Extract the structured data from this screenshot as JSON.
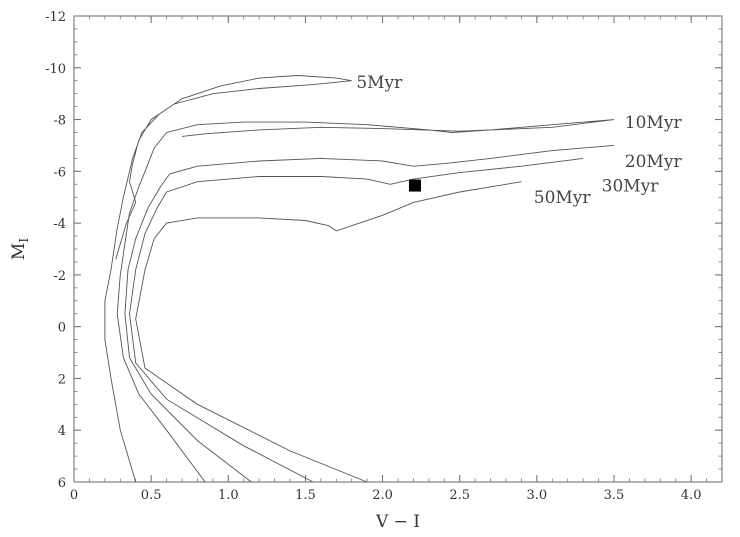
{
  "chart_data": {
    "type": "line",
    "title": "",
    "xlabel": "V − I",
    "ylabel_main": "M",
    "ylabel_sub": "I",
    "xlim": [
      0,
      4.2
    ],
    "ylim": [
      -12,
      6
    ],
    "y_inverted": true,
    "grid": false,
    "xticks": [
      0,
      0.5,
      1.0,
      1.5,
      2.0,
      2.5,
      3.0,
      3.5,
      4.0
    ],
    "xtick_labels": [
      "0",
      "0.5",
      "1.0",
      "1.5",
      "2.0",
      "2.5",
      "3.0",
      "3.5",
      "4.0"
    ],
    "yticks": [
      -12,
      -10,
      -8,
      -6,
      -4,
      -2,
      0,
      2,
      4,
      6
    ],
    "ytick_labels": [
      "-12",
      "-10",
      "-8",
      "-6",
      "-4",
      "-2",
      "0",
      "2",
      "4",
      "6"
    ],
    "series": [
      {
        "name": "5Myr",
        "label_at": [
          1.83,
          -9.45
        ],
        "points": [
          [
            0.4,
            6.0
          ],
          [
            0.3,
            4.0
          ],
          [
            0.24,
            2.0
          ],
          [
            0.2,
            0.5
          ],
          [
            0.2,
            -1.0
          ],
          [
            0.24,
            -2.2
          ],
          [
            0.28,
            -3.8
          ],
          [
            0.32,
            -5.0
          ],
          [
            0.38,
            -6.5
          ],
          [
            0.44,
            -7.5
          ],
          [
            0.55,
            -8.2
          ],
          [
            0.7,
            -8.8
          ],
          [
            0.95,
            -9.3
          ],
          [
            1.2,
            -9.6
          ],
          [
            1.45,
            -9.7
          ],
          [
            1.7,
            -9.6
          ],
          [
            1.8,
            -9.5
          ],
          [
            1.55,
            -9.35
          ],
          [
            1.2,
            -9.2
          ],
          [
            0.9,
            -9.0
          ],
          [
            0.65,
            -8.6
          ],
          [
            0.5,
            -8.0
          ],
          [
            0.42,
            -7.2
          ],
          [
            0.38,
            -6.3
          ],
          [
            0.36,
            -5.6
          ],
          [
            0.4,
            -4.8
          ],
          [
            0.34,
            -4.0
          ],
          [
            0.3,
            -3.2
          ],
          [
            0.27,
            -2.6
          ]
        ]
      },
      {
        "name": "10Myr",
        "label_at": [
          3.57,
          -7.9
        ],
        "points": [
          [
            0.85,
            6.0
          ],
          [
            0.6,
            4.0
          ],
          [
            0.42,
            2.6
          ],
          [
            0.32,
            1.2
          ],
          [
            0.28,
            -0.5
          ],
          [
            0.3,
            -2.0
          ],
          [
            0.33,
            -3.2
          ],
          [
            0.36,
            -4.4
          ],
          [
            0.42,
            -5.4
          ],
          [
            0.48,
            -6.3
          ],
          [
            0.52,
            -6.9
          ],
          [
            0.6,
            -7.5
          ],
          [
            0.8,
            -7.8
          ],
          [
            1.1,
            -7.9
          ],
          [
            1.5,
            -7.9
          ],
          [
            1.9,
            -7.8
          ],
          [
            2.3,
            -7.6
          ],
          [
            2.45,
            -7.5
          ],
          [
            2.7,
            -7.6
          ],
          [
            3.1,
            -7.8
          ],
          [
            3.5,
            -8.0
          ],
          [
            3.1,
            -7.7
          ],
          [
            2.5,
            -7.55
          ],
          [
            2.0,
            -7.65
          ],
          [
            1.6,
            -7.7
          ],
          [
            1.2,
            -7.6
          ],
          [
            0.85,
            -7.45
          ],
          [
            0.7,
            -7.35
          ]
        ]
      },
      {
        "name": "20Myr",
        "label_at": [
          3.57,
          -6.4
        ],
        "points": [
          [
            1.15,
            6.0
          ],
          [
            0.8,
            4.4
          ],
          [
            0.5,
            2.6
          ],
          [
            0.36,
            1.2
          ],
          [
            0.33,
            -0.5
          ],
          [
            0.35,
            -2.2
          ],
          [
            0.4,
            -3.4
          ],
          [
            0.48,
            -4.6
          ],
          [
            0.56,
            -5.4
          ],
          [
            0.62,
            -5.9
          ],
          [
            0.8,
            -6.2
          ],
          [
            1.2,
            -6.4
          ],
          [
            1.6,
            -6.5
          ],
          [
            2.0,
            -6.4
          ],
          [
            2.2,
            -6.2
          ],
          [
            2.4,
            -6.3
          ],
          [
            2.7,
            -6.5
          ],
          [
            3.1,
            -6.8
          ],
          [
            3.5,
            -7.0
          ]
        ]
      },
      {
        "name": "30Myr",
        "label_at": [
          3.42,
          -5.45
        ],
        "points": [
          [
            1.55,
            6.0
          ],
          [
            1.1,
            4.6
          ],
          [
            0.6,
            2.8
          ],
          [
            0.4,
            1.4
          ],
          [
            0.36,
            -0.5
          ],
          [
            0.4,
            -2.2
          ],
          [
            0.46,
            -3.6
          ],
          [
            0.54,
            -4.6
          ],
          [
            0.6,
            -5.2
          ],
          [
            0.8,
            -5.6
          ],
          [
            1.2,
            -5.8
          ],
          [
            1.6,
            -5.8
          ],
          [
            1.9,
            -5.7
          ],
          [
            2.05,
            -5.5
          ],
          [
            2.2,
            -5.7
          ],
          [
            2.5,
            -5.95
          ],
          [
            2.9,
            -6.2
          ],
          [
            3.3,
            -6.5
          ]
        ]
      },
      {
        "name": "50Myr",
        "label_at": [
          2.98,
          -5.0
        ],
        "points": [
          [
            1.9,
            6.0
          ],
          [
            1.4,
            4.8
          ],
          [
            0.8,
            3.0
          ],
          [
            0.46,
            1.6
          ],
          [
            0.4,
            -0.3
          ],
          [
            0.46,
            -2.2
          ],
          [
            0.52,
            -3.4
          ],
          [
            0.6,
            -4.0
          ],
          [
            0.8,
            -4.2
          ],
          [
            1.2,
            -4.2
          ],
          [
            1.5,
            -4.1
          ],
          [
            1.65,
            -3.9
          ],
          [
            1.7,
            -3.7
          ],
          [
            1.8,
            -3.9
          ],
          [
            2.0,
            -4.3
          ],
          [
            2.2,
            -4.8
          ],
          [
            2.5,
            -5.2
          ],
          [
            2.9,
            -5.6
          ]
        ]
      }
    ],
    "markers": [
      {
        "name": "",
        "x": 2.21,
        "y": -5.45,
        "shape": "filled-square"
      }
    ]
  }
}
